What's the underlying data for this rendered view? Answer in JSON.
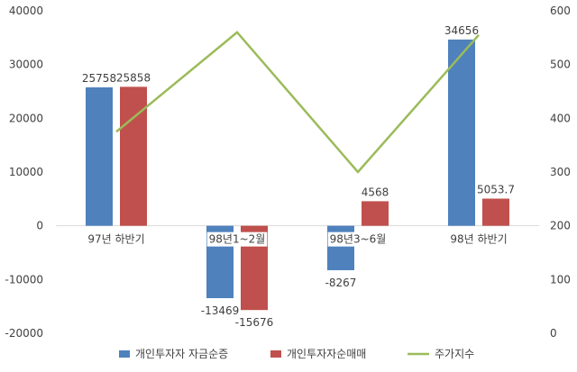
{
  "chart_data": {
    "type": "bar+line",
    "categories": [
      "97년 하반기",
      "98년1~2월",
      "98년3~6월",
      "98년 하반기"
    ],
    "series": [
      {
        "name": "개인투자자 자금순증",
        "type": "bar",
        "axis": "left",
        "color": "#4F81BD",
        "values": [
          25758,
          -13469,
          -8267,
          34656
        ],
        "labels": [
          "25758",
          "-13469",
          "-8267",
          "34656"
        ]
      },
      {
        "name": "개인투자자순매매",
        "type": "bar",
        "axis": "left",
        "color": "#C0504D",
        "values": [
          25858,
          -15676,
          4568,
          5053.7
        ],
        "labels": [
          "25858",
          "-15676",
          "4568",
          "5053.7"
        ]
      },
      {
        "name": "주가지수",
        "type": "line",
        "axis": "right",
        "color": "#9BBB59",
        "values": [
          375,
          560,
          300,
          555
        ]
      }
    ],
    "y_left": {
      "min": -20000,
      "max": 40000,
      "ticks": [
        -20000,
        -10000,
        0,
        10000,
        20000,
        30000,
        40000
      ]
    },
    "y_right": {
      "min": 0,
      "max": 600,
      "ticks": [
        0,
        100,
        200,
        300,
        400,
        500,
        600
      ]
    },
    "grid": false,
    "legend": "bottom"
  }
}
